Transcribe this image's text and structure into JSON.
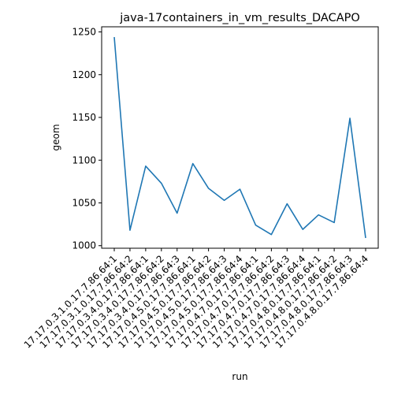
{
  "chart_data": {
    "type": "line",
    "title": "java-17containers_in_vm_results_DACAPO",
    "xlabel": "run",
    "ylabel": "geom",
    "categories": [
      "17.17.0.3.1.0.17.7.86.64:1",
      "17.17.0.3.1.0.17.7.86.64:2",
      "17.17.0.3.4.0.17.7.86.64:1",
      "17.17.0.3.4.0.17.7.86.64:2",
      "17.17.0.3.4.0.17.7.86.64:3",
      "17.17.0.4.5.0.17.7.86.64:1",
      "17.17.0.4.5.0.17.7.86.64:2",
      "17.17.0.4.5.0.17.7.86.64:3",
      "17.17.0.4.5.0.17.7.86.64:4",
      "17.17.0.4.7.0.17.7.86.64:1",
      "17.17.0.4.7.0.17.7.86.64:2",
      "17.17.0.4.7.0.17.7.86.64:3",
      "17.17.0.4.7.0.17.7.86.64:4",
      "17.17.0.4.8.0.17.7.86.64:1",
      "17.17.0.4.8.0.17.7.86.64:2",
      "17.17.0.4.8.0.17.7.86.64:3",
      "17.17.0.4.8.0.17.7.86.64:4"
    ],
    "series": [
      {
        "color": "#1f77b4",
        "values": [
          1244,
          1018,
          1093,
          1073,
          1038,
          1096,
          1067,
          1053,
          1066,
          1024,
          1013,
          1049,
          1019,
          1036,
          1027,
          1149,
          1009
        ]
      }
    ],
    "ylim": [
      997,
      1256
    ],
    "yticks": [
      1000,
      1050,
      1100,
      1150,
      1200,
      1250
    ],
    "grid": false,
    "legend": "none"
  }
}
